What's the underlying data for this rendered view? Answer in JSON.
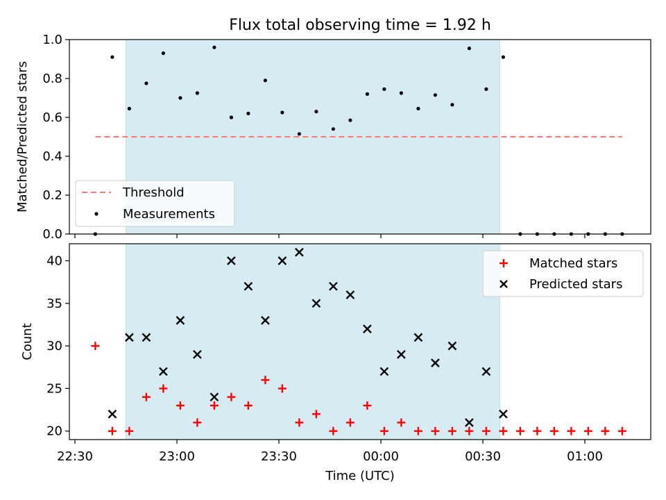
{
  "chart_data": [
    {
      "type": "scatter",
      "title": "Flux total observing time = 1.92 h",
      "ylabel": "Matched/Predicted stars",
      "xlabel": "",
      "ylim": [
        0,
        1.0
      ],
      "yticks": [
        "0.0",
        "0.2",
        "0.4",
        "0.6",
        "0.8",
        "1.0"
      ],
      "shaded_span": [
        "22:45",
        "00:35"
      ],
      "threshold": {
        "name": "Threshold",
        "y": 0.5,
        "x_range": [
          "22:36",
          "01:11"
        ],
        "color": "#ff7777"
      },
      "measurements": {
        "name": "Measurements",
        "color": "#000000",
        "x": [
          "22:36",
          "22:41",
          "22:46",
          "22:51",
          "22:56",
          "23:01",
          "23:06",
          "23:11",
          "23:16",
          "23:21",
          "23:26",
          "23:31",
          "23:36",
          "23:41",
          "23:46",
          "23:51",
          "23:56",
          "00:01",
          "00:06",
          "00:11",
          "00:16",
          "00:21",
          "00:26",
          "00:31",
          "00:36",
          "00:41",
          "00:46",
          "00:51",
          "00:56",
          "01:01",
          "01:06",
          "01:11"
        ],
        "y": [
          0.0,
          0.91,
          0.645,
          0.775,
          0.93,
          0.7,
          0.725,
          0.96,
          0.6,
          0.62,
          0.79,
          0.625,
          0.515,
          0.63,
          0.54,
          0.585,
          0.72,
          0.745,
          0.725,
          0.645,
          0.715,
          0.665,
          0.955,
          0.745,
          0.91,
          0.0,
          0.0,
          0.0,
          0.0,
          0.0,
          0.0,
          0.0
        ]
      },
      "legend_position": "lower-left"
    },
    {
      "type": "scatter",
      "title": "",
      "ylabel": "Count",
      "xlabel": "Time (UTC)",
      "ylim": [
        19,
        42
      ],
      "yticks": [
        "20",
        "25",
        "30",
        "35",
        "40"
      ],
      "xticks": [
        "22:30",
        "23:00",
        "23:30",
        "00:00",
        "00:30",
        "01:00"
      ],
      "shaded_span": [
        "22:45",
        "00:35"
      ],
      "series": [
        {
          "name": "Matched stars",
          "marker": "plus",
          "color": "#ff0000",
          "x": [
            "22:36",
            "22:41",
            "22:46",
            "22:51",
            "22:56",
            "23:01",
            "23:06",
            "23:11",
            "23:16",
            "23:21",
            "23:26",
            "23:31",
            "23:36",
            "23:41",
            "23:46",
            "23:51",
            "23:56",
            "00:01",
            "00:06",
            "00:11",
            "00:16",
            "00:21",
            "00:26",
            "00:31",
            "00:36",
            "00:41",
            "00:46",
            "00:51",
            "00:56",
            "01:01",
            "01:06",
            "01:11"
          ],
          "values": [
            30,
            20,
            20,
            24,
            25,
            23,
            21,
            23,
            24,
            23,
            26,
            25,
            21,
            22,
            20,
            21,
            23,
            20,
            21,
            20,
            20,
            20,
            20,
            20,
            20,
            20,
            20,
            20,
            20,
            20,
            20,
            20
          ]
        },
        {
          "name": "Predicted stars",
          "marker": "x",
          "color": "#000000",
          "x": [
            "22:41",
            "22:46",
            "22:51",
            "22:56",
            "23:01",
            "23:06",
            "23:11",
            "23:16",
            "23:21",
            "23:26",
            "23:31",
            "23:36",
            "23:41",
            "23:46",
            "23:51",
            "23:56",
            "00:01",
            "00:06",
            "00:11",
            "00:16",
            "00:21",
            "00:26",
            "00:31",
            "00:36"
          ],
          "values": [
            22,
            31,
            31,
            27,
            33,
            29,
            24,
            40,
            37,
            33,
            40,
            41,
            35,
            37,
            36,
            32,
            27,
            29,
            31,
            28,
            30,
            21,
            27,
            22
          ]
        }
      ],
      "legend_position": "upper-right"
    }
  ],
  "colors": {
    "shade": "#add8e6"
  }
}
